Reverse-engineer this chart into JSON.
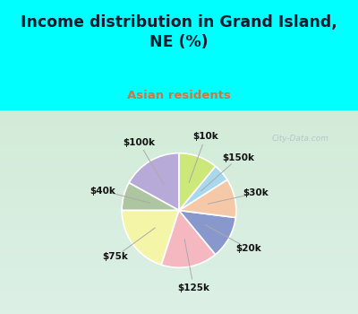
{
  "title": "Income distribution in Grand Island,\nNE (%)",
  "subtitle": "Asian residents",
  "title_color": "#1a1a2e",
  "subtitle_color": "#cc7744",
  "background_color": "#00ffff",
  "chart_bg_top": "#e8f5f0",
  "chart_bg_bottom": "#d0eedd",
  "watermark": "City-Data.com",
  "labels": [
    "$100k",
    "$40k",
    "$75k",
    "$125k",
    "$20k",
    "$30k",
    "$150k",
    "$10k"
  ],
  "values": [
    17,
    8,
    20,
    16,
    12,
    11,
    5,
    11
  ],
  "colors": [
    "#b8aad8",
    "#adc5a0",
    "#f5f5a8",
    "#f5b8c0",
    "#8898cc",
    "#f5c8a8",
    "#a8d8ee",
    "#cce878"
  ],
  "startangle": 90
}
